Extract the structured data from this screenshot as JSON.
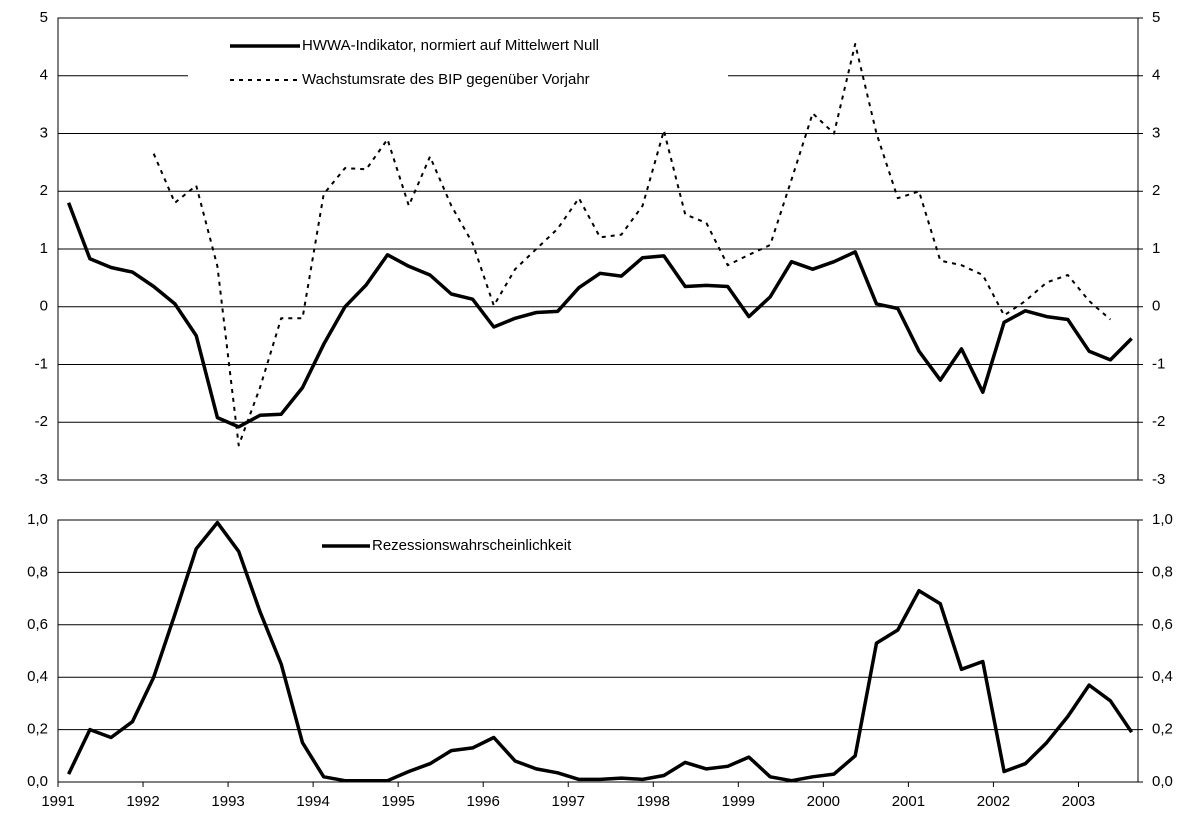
{
  "chart_data": [
    {
      "type": "line",
      "x": [
        1991.125,
        1991.375,
        1991.625,
        1991.875,
        1992.125,
        1992.375,
        1992.625,
        1992.875,
        1993.125,
        1993.375,
        1993.625,
        1993.875,
        1994.125,
        1994.375,
        1994.625,
        1994.875,
        1995.125,
        1995.375,
        1995.625,
        1995.875,
        1996.125,
        1996.375,
        1996.625,
        1996.875,
        1997.125,
        1997.375,
        1997.625,
        1997.875,
        1998.125,
        1998.375,
        1998.625,
        1998.875,
        1999.125,
        1999.375,
        1999.625,
        1999.875,
        2000.125,
        2000.375,
        2000.625,
        2000.875,
        2001.125,
        2001.375,
        2001.625,
        2001.875,
        2002.125,
        2002.375,
        2002.625,
        2002.875,
        2003.125,
        2003.375,
        2003.625
      ],
      "xlim": [
        1991,
        2003.7
      ],
      "ylim": [
        -3,
        5
      ],
      "yticks": [
        -3,
        -2,
        -1,
        0,
        1,
        2,
        3,
        4,
        5
      ],
      "y2lim": [
        -3,
        5
      ],
      "y2ticks": [
        -3,
        -2,
        -1,
        0,
        1,
        2,
        3,
        4,
        5
      ],
      "grid": true,
      "series": [
        {
          "name": "HWWA-Indikator, normiert auf Mittelwert Null",
          "color": "#000000",
          "dash": false,
          "values": [
            1.8,
            0.83,
            0.68,
            0.6,
            0.35,
            0.05,
            -0.5,
            -1.92,
            -2.08,
            -1.88,
            -1.86,
            -1.4,
            -0.65,
            0.0,
            0.38,
            0.9,
            0.7,
            0.55,
            0.22,
            0.13,
            -0.35,
            -0.2,
            -0.1,
            -0.08,
            0.33,
            0.58,
            0.53,
            0.85,
            0.88,
            0.35,
            0.37,
            0.35,
            -0.17,
            0.17,
            0.78,
            0.65,
            0.78,
            0.95,
            0.05,
            -0.03,
            -0.77,
            -1.27,
            -0.73,
            -1.48,
            -0.27,
            -0.07,
            -0.17,
            -0.22,
            -0.77,
            -0.92,
            -0.55
          ]
        },
        {
          "name": "Wachstumsrate des BIP gegenüber Vorjahr",
          "color": "#000000",
          "dash": true,
          "values": [
            null,
            null,
            null,
            null,
            2.65,
            1.8,
            2.1,
            0.7,
            -2.4,
            -1.4,
            -0.2,
            -0.2,
            1.95,
            2.4,
            2.38,
            2.9,
            1.75,
            2.6,
            1.75,
            1.1,
            0.02,
            0.65,
            1.0,
            1.35,
            1.88,
            1.2,
            1.25,
            1.75,
            3.05,
            1.6,
            1.45,
            0.72,
            0.9,
            1.07,
            2.2,
            3.35,
            3.0,
            4.55,
            3.0,
            1.88,
            2.0,
            0.8,
            0.72,
            0.55,
            -0.15,
            0.1,
            0.42,
            0.55,
            0.1,
            -0.22,
            null
          ]
        }
      ]
    },
    {
      "type": "line",
      "x": [
        1991.125,
        1991.375,
        1991.625,
        1991.875,
        1992.125,
        1992.375,
        1992.625,
        1992.875,
        1993.125,
        1993.375,
        1993.625,
        1993.875,
        1994.125,
        1994.375,
        1994.625,
        1994.875,
        1995.125,
        1995.375,
        1995.625,
        1995.875,
        1996.125,
        1996.375,
        1996.625,
        1996.875,
        1997.125,
        1997.375,
        1997.625,
        1997.875,
        1998.125,
        1998.375,
        1998.625,
        1998.875,
        1999.125,
        1999.375,
        1999.625,
        1999.875,
        2000.125,
        2000.375,
        2000.625,
        2000.875,
        2001.125,
        2001.375,
        2001.625,
        2001.875,
        2002.125,
        2002.375,
        2002.625,
        2002.875,
        2003.125,
        2003.375,
        2003.625
      ],
      "xlim": [
        1991,
        2003.7
      ],
      "xticks": [
        1991,
        1992,
        1993,
        1994,
        1995,
        1996,
        1997,
        1998,
        1999,
        2000,
        2001,
        2002,
        2003
      ],
      "ylim": [
        0,
        1
      ],
      "yticks": [
        {
          "value": 0,
          "label": "0,0"
        },
        {
          "value": 0.2,
          "label": "0,2"
        },
        {
          "value": 0.4,
          "label": "0,4"
        },
        {
          "value": 0.6,
          "label": "0,6"
        },
        {
          "value": 0.8,
          "label": "0,8"
        },
        {
          "value": 1,
          "label": "1,0"
        }
      ],
      "y2lim": [
        0,
        1
      ],
      "y2ticks": [
        {
          "value": 0,
          "label": "0,0"
        },
        {
          "value": 0.2,
          "label": "0,2"
        },
        {
          "value": 0.4,
          "label": "0,4"
        },
        {
          "value": 0.6,
          "label": "0,6"
        },
        {
          "value": 0.8,
          "label": "0,8"
        },
        {
          "value": 1,
          "label": "1,0"
        }
      ],
      "grid": true,
      "series": [
        {
          "name": "Rezessionswahrscheinlichkeit",
          "color": "#000000",
          "dash": false,
          "values": [
            0.03,
            0.2,
            0.17,
            0.23,
            0.4,
            0.64,
            0.89,
            0.99,
            0.88,
            0.65,
            0.45,
            0.15,
            0.02,
            0.005,
            0.005,
            0.005,
            0.04,
            0.07,
            0.12,
            0.13,
            0.17,
            0.08,
            0.05,
            0.035,
            0.01,
            0.01,
            0.015,
            0.01,
            0.025,
            0.075,
            0.05,
            0.06,
            0.095,
            0.02,
            0.005,
            0.02,
            0.03,
            0.1,
            0.53,
            0.58,
            0.73,
            0.68,
            0.43,
            0.46,
            0.04,
            0.07,
            0.15,
            0.25,
            0.37,
            0.31,
            0.19
          ]
        }
      ]
    }
  ]
}
